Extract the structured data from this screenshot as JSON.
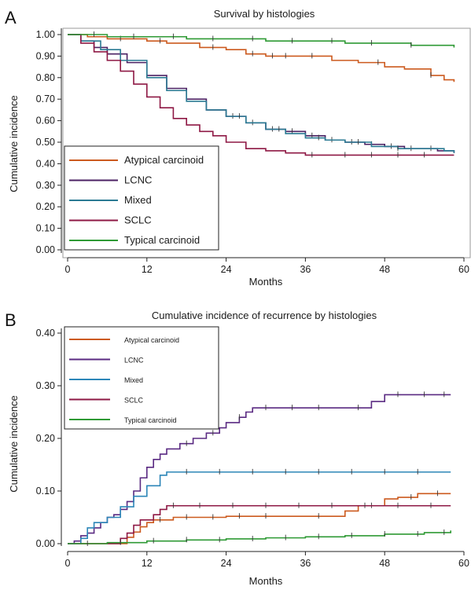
{
  "chart_data": [
    {
      "panel_label": "A",
      "type": "line",
      "title": "Survival by histologies",
      "xlabel": "Months",
      "ylabel": "Cumulative incidence",
      "xlim": [
        0,
        60
      ],
      "ylim": [
        0,
        1.0
      ],
      "x_ticks": [
        0,
        12,
        24,
        36,
        48,
        60
      ],
      "y_ticks": [
        0.0,
        0.1,
        0.2,
        0.3,
        0.4,
        0.5,
        0.6,
        0.7,
        0.8,
        0.9,
        1.0
      ],
      "x_tick_labels": [
        "0",
        "12",
        "24",
        "36",
        "48",
        "60"
      ],
      "y_tick_labels": [
        "0.00",
        "0.10",
        "0.20",
        "0.30",
        "0.40",
        "0.50",
        "0.60",
        "0.70",
        "0.80",
        "0.90",
        "1.00"
      ],
      "legend_position": "bottom-left",
      "grid": false,
      "series": [
        {
          "name": "Atypical carcinoid",
          "color": "#cc5a1e",
          "x": [
            0,
            3,
            6,
            12,
            15,
            20,
            24,
            27,
            30,
            36,
            40,
            44,
            48,
            51,
            55,
            57,
            58.5
          ],
          "y": [
            1.0,
            0.99,
            0.98,
            0.97,
            0.96,
            0.94,
            0.93,
            0.91,
            0.9,
            0.9,
            0.88,
            0.87,
            0.85,
            0.84,
            0.81,
            0.79,
            0.78
          ],
          "censor_x": [
            8,
            14,
            22,
            28,
            31,
            33,
            37,
            47,
            55
          ]
        },
        {
          "name": "LCNC",
          "color": "#4b2163",
          "x": [
            0,
            2,
            4,
            6,
            9,
            12,
            15,
            18,
            21,
            24,
            27,
            30,
            33,
            36,
            39,
            42,
            45,
            48,
            51,
            54,
            56,
            58.5
          ],
          "y": [
            1.0,
            0.97,
            0.94,
            0.91,
            0.87,
            0.81,
            0.75,
            0.7,
            0.65,
            0.62,
            0.59,
            0.56,
            0.55,
            0.53,
            0.51,
            0.5,
            0.49,
            0.48,
            0.47,
            0.47,
            0.46,
            0.45
          ],
          "censor_x": [
            25,
            28,
            31,
            34,
            37,
            40,
            43,
            46,
            49,
            52,
            55
          ]
        },
        {
          "name": "Mixed",
          "color": "#2a7a93",
          "x": [
            0,
            2,
            5,
            8,
            12,
            15,
            18,
            21,
            24,
            27,
            30,
            33,
            36,
            39,
            42,
            46,
            50,
            54,
            57,
            58.5
          ],
          "y": [
            1.0,
            0.97,
            0.93,
            0.88,
            0.8,
            0.74,
            0.69,
            0.65,
            0.62,
            0.59,
            0.56,
            0.54,
            0.52,
            0.51,
            0.5,
            0.48,
            0.47,
            0.47,
            0.46,
            0.45
          ],
          "censor_x": [
            26,
            32,
            38,
            44,
            50
          ]
        },
        {
          "name": "SCLC",
          "color": "#8e1844",
          "x": [
            0,
            2,
            4,
            6,
            8,
            10,
            12,
            14,
            16,
            18,
            20,
            22,
            24,
            27,
            30,
            33,
            36,
            40,
            44,
            48,
            52,
            56,
            58.5
          ],
          "y": [
            1.0,
            0.96,
            0.92,
            0.88,
            0.83,
            0.77,
            0.71,
            0.66,
            0.61,
            0.58,
            0.55,
            0.53,
            0.5,
            0.47,
            0.46,
            0.45,
            0.44,
            0.44,
            0.44,
            0.44,
            0.44,
            0.44,
            0.44
          ],
          "censor_x": [
            37,
            42,
            46,
            50,
            54
          ]
        },
        {
          "name": "Typical carcinoid",
          "color": "#2e9a34",
          "x": [
            0,
            6,
            12,
            18,
            24,
            30,
            36,
            42,
            48,
            52,
            56,
            58.5
          ],
          "y": [
            1.0,
            0.99,
            0.99,
            0.98,
            0.98,
            0.97,
            0.97,
            0.96,
            0.96,
            0.95,
            0.95,
            0.94
          ],
          "censor_x": [
            4,
            10,
            16,
            22,
            28,
            34,
            40,
            46,
            52
          ]
        }
      ]
    },
    {
      "panel_label": "B",
      "type": "line",
      "title": "Cumulative incidence of recurrence by histologies",
      "xlabel": "Months",
      "ylabel": "Cumulative incidence",
      "xlim": [
        0,
        60
      ],
      "ylim": [
        0,
        0.4
      ],
      "x_ticks": [
        0,
        12,
        24,
        36,
        48,
        60
      ],
      "y_ticks": [
        0.0,
        0.1,
        0.2,
        0.3,
        0.4
      ],
      "x_tick_labels": [
        "0",
        "12",
        "24",
        "36",
        "48",
        "60"
      ],
      "y_tick_labels": [
        "0.00",
        "0.10",
        "0.20",
        "0.30",
        "0.40"
      ],
      "legend_position": "top-left",
      "grid": false,
      "series": [
        {
          "name": "Atypical carcinoid",
          "color": "#cc5a1e",
          "x": [
            0,
            8,
            9,
            10,
            11,
            12,
            13,
            16,
            20,
            24,
            32,
            42,
            44,
            48,
            50,
            53,
            58
          ],
          "y": [
            0.0,
            0.0,
            0.012,
            0.022,
            0.032,
            0.04,
            0.045,
            0.05,
            0.05,
            0.052,
            0.052,
            0.062,
            0.072,
            0.085,
            0.088,
            0.095,
            0.095
          ],
          "censor_x": [
            14,
            18,
            22,
            26,
            30,
            38,
            46,
            52,
            56
          ]
        },
        {
          "name": "LCNC",
          "color": "#5a2a82",
          "x": [
            0,
            1,
            2,
            3,
            4,
            5,
            6,
            7,
            8,
            9,
            10,
            11,
            12,
            13,
            14,
            15,
            17,
            19,
            21,
            23,
            24,
            26,
            27,
            28,
            33,
            36,
            41,
            46,
            48,
            58
          ],
          "y": [
            0.0,
            0.005,
            0.015,
            0.02,
            0.03,
            0.04,
            0.05,
            0.055,
            0.065,
            0.08,
            0.1,
            0.125,
            0.145,
            0.16,
            0.17,
            0.18,
            0.19,
            0.2,
            0.21,
            0.22,
            0.23,
            0.24,
            0.25,
            0.258,
            0.258,
            0.258,
            0.258,
            0.27,
            0.283,
            0.283
          ],
          "censor_x": [
            18,
            22,
            26,
            30,
            34,
            38,
            44,
            50,
            54,
            57
          ]
        },
        {
          "name": "Mixed",
          "color": "#2c86b8",
          "x": [
            0,
            2,
            3,
            4,
            6,
            8,
            10,
            12,
            14,
            15,
            16,
            20,
            24,
            36,
            48,
            58
          ],
          "y": [
            0.0,
            0.01,
            0.03,
            0.04,
            0.05,
            0.07,
            0.09,
            0.11,
            0.13,
            0.136,
            0.136,
            0.136,
            0.136,
            0.136,
            0.136,
            0.136
          ],
          "censor_x": [
            18,
            23,
            28,
            33,
            38,
            43,
            48,
            53
          ]
        },
        {
          "name": "SCLC",
          "color": "#8e1844",
          "x": [
            0,
            7,
            8,
            9,
            10,
            11,
            13,
            14,
            15,
            18,
            24,
            36,
            48,
            58
          ],
          "y": [
            0.0,
            0.0,
            0.01,
            0.02,
            0.035,
            0.045,
            0.055,
            0.065,
            0.072,
            0.072,
            0.072,
            0.072,
            0.072,
            0.072
          ],
          "censor_x": [
            16,
            20,
            25,
            30,
            35,
            40,
            45,
            50,
            55
          ]
        },
        {
          "name": "Typical carcinoid",
          "color": "#2e9a34",
          "x": [
            0,
            6,
            12,
            18,
            24,
            30,
            36,
            42,
            48,
            54,
            58
          ],
          "y": [
            0.0,
            0.002,
            0.005,
            0.007,
            0.009,
            0.011,
            0.013,
            0.015,
            0.018,
            0.021,
            0.025
          ],
          "censor_x": [
            3,
            8,
            13,
            18,
            23,
            28,
            33,
            38,
            43,
            48,
            53,
            57
          ]
        }
      ]
    }
  ]
}
